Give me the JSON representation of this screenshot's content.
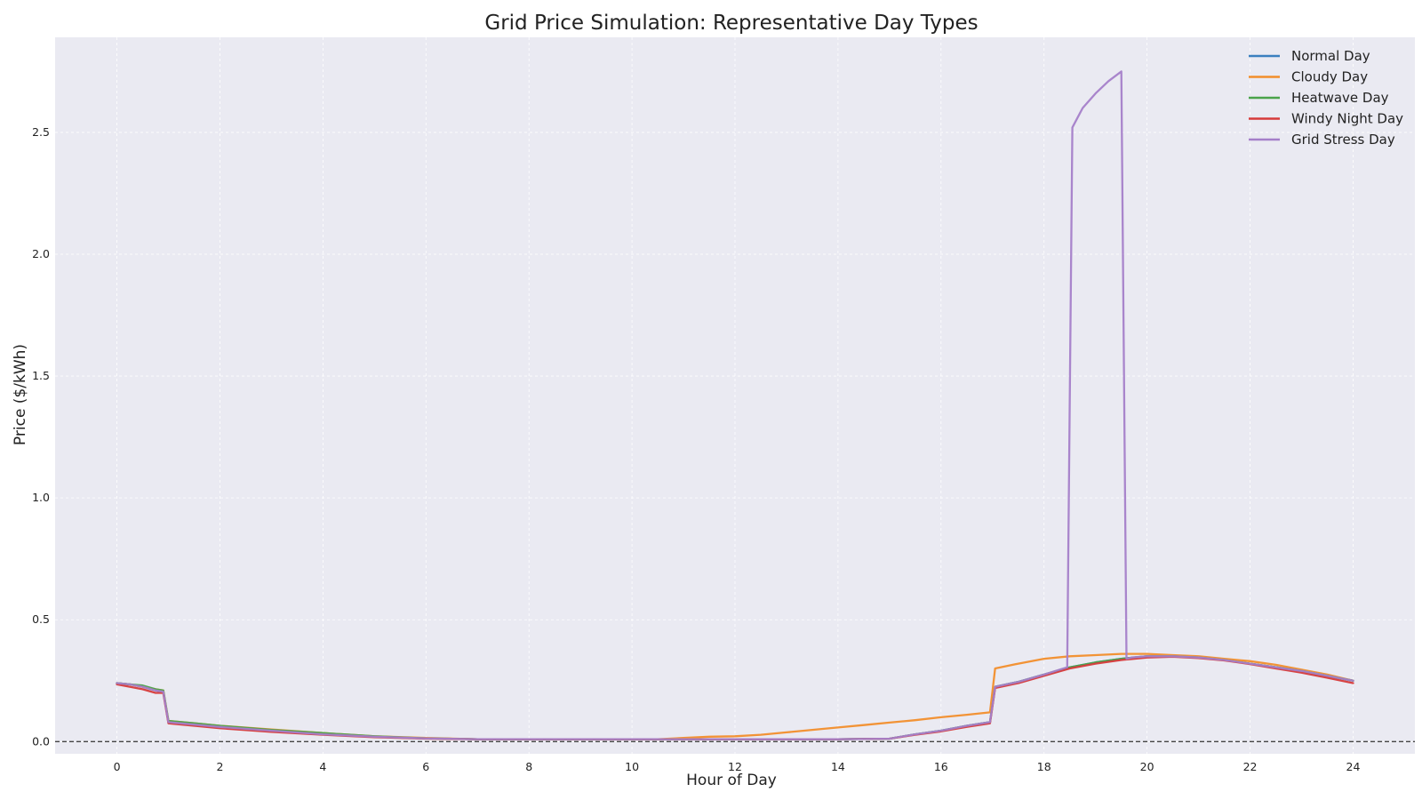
{
  "chart_data": {
    "type": "line",
    "title": "Grid Price Simulation: Representative Day Types",
    "xlabel": "Hour of Day",
    "ylabel": "Price ($/kWh)",
    "xlim": [
      -1.2,
      25.2
    ],
    "ylim": [
      -0.05,
      2.89
    ],
    "xticks": [
      0,
      2,
      4,
      6,
      8,
      10,
      12,
      14,
      16,
      18,
      20,
      22,
      24
    ],
    "yticks": [
      0.0,
      0.5,
      1.0,
      1.5,
      2.0,
      2.5
    ],
    "xtick_labels": [
      "0",
      "2",
      "4",
      "6",
      "8",
      "10",
      "12",
      "14",
      "16",
      "18",
      "20",
      "22",
      "24"
    ],
    "ytick_labels": [
      "0.0",
      "0.5",
      "1.0",
      "1.5",
      "2.0",
      "2.5"
    ],
    "grid": true,
    "reference_line": {
      "y": 0.0,
      "style": "dashed"
    },
    "legend_position": "top-right",
    "background": "#eaeaf2",
    "series": [
      {
        "name": "Normal Day",
        "color": "#3a7fbf",
        "x": [
          0,
          0.25,
          0.5,
          0.75,
          0.9,
          1.0,
          1.5,
          2,
          3,
          4,
          5,
          6,
          7,
          8,
          9,
          10,
          11,
          12,
          13,
          14,
          15,
          15.5,
          16,
          16.5,
          16.95,
          17.05,
          17.5,
          18,
          18.5,
          19,
          19.5,
          20,
          20.5,
          21,
          21.5,
          22,
          22.5,
          23,
          23.5,
          24
        ],
        "y": [
          0.24,
          0.235,
          0.225,
          0.21,
          0.205,
          0.08,
          0.07,
          0.06,
          0.045,
          0.03,
          0.02,
          0.013,
          0.01,
          0.01,
          0.01,
          0.01,
          0.01,
          0.01,
          0.01,
          0.01,
          0.012,
          0.03,
          0.045,
          0.065,
          0.08,
          0.225,
          0.245,
          0.275,
          0.305,
          0.325,
          0.34,
          0.35,
          0.35,
          0.345,
          0.335,
          0.32,
          0.305,
          0.29,
          0.27,
          0.25
        ]
      },
      {
        "name": "Cloudy Day",
        "color": "#f28e2b",
        "x": [
          0,
          0.25,
          0.5,
          0.75,
          0.9,
          1.0,
          1.5,
          2,
          3,
          4,
          5,
          6,
          7,
          8,
          9,
          10,
          10.5,
          11,
          11.5,
          12,
          12.5,
          13,
          13.5,
          14,
          14.5,
          15,
          15.5,
          16,
          16.5,
          16.95,
          17.05,
          17.5,
          18,
          18.5,
          19,
          19.5,
          20,
          20.5,
          21,
          21.5,
          22,
          22.5,
          23,
          23.5,
          24
        ],
        "y": [
          0.24,
          0.235,
          0.225,
          0.215,
          0.21,
          0.085,
          0.075,
          0.065,
          0.05,
          0.035,
          0.022,
          0.015,
          0.01,
          0.01,
          0.01,
          0.01,
          0.01,
          0.015,
          0.02,
          0.022,
          0.028,
          0.038,
          0.048,
          0.058,
          0.068,
          0.078,
          0.088,
          0.1,
          0.11,
          0.12,
          0.3,
          0.32,
          0.34,
          0.35,
          0.355,
          0.36,
          0.36,
          0.355,
          0.35,
          0.34,
          0.33,
          0.315,
          0.295,
          0.275,
          0.25
        ]
      },
      {
        "name": "Heatwave Day",
        "color": "#4aa34a",
        "x": [
          0,
          0.25,
          0.5,
          0.75,
          0.9,
          1.0,
          1.5,
          2,
          3,
          4,
          5,
          6,
          7,
          8,
          9,
          10,
          11,
          12,
          13,
          14,
          15,
          15.5,
          16,
          16.5,
          16.95,
          17.05,
          17.5,
          18,
          18.5,
          19,
          19.5,
          20,
          20.5,
          21,
          21.5,
          22,
          22.5,
          23,
          23.5,
          24
        ],
        "y": [
          0.24,
          0.235,
          0.23,
          0.215,
          0.21,
          0.085,
          0.075,
          0.065,
          0.048,
          0.035,
          0.022,
          0.013,
          0.01,
          0.01,
          0.01,
          0.01,
          0.01,
          0.01,
          0.01,
          0.01,
          0.012,
          0.03,
          0.045,
          0.065,
          0.08,
          0.225,
          0.245,
          0.275,
          0.305,
          0.325,
          0.34,
          0.35,
          0.35,
          0.345,
          0.335,
          0.32,
          0.305,
          0.29,
          0.27,
          0.25
        ]
      },
      {
        "name": "Windy Night Day",
        "color": "#d63a3a",
        "x": [
          0,
          0.25,
          0.5,
          0.75,
          0.9,
          1.0,
          1.5,
          2,
          3,
          4,
          5,
          6,
          7,
          8,
          9,
          10,
          11,
          12,
          13,
          14,
          15,
          15.5,
          16,
          16.5,
          16.95,
          17.05,
          17.5,
          18,
          18.5,
          19,
          19.5,
          20,
          20.5,
          21,
          21.5,
          22,
          22.5,
          23,
          23.5,
          24
        ],
        "y": [
          0.235,
          0.225,
          0.215,
          0.2,
          0.2,
          0.075,
          0.065,
          0.055,
          0.04,
          0.028,
          0.018,
          0.012,
          0.01,
          0.01,
          0.01,
          0.01,
          0.01,
          0.01,
          0.01,
          0.01,
          0.012,
          0.028,
          0.042,
          0.06,
          0.075,
          0.22,
          0.24,
          0.27,
          0.3,
          0.32,
          0.335,
          0.345,
          0.348,
          0.343,
          0.333,
          0.318,
          0.3,
          0.283,
          0.262,
          0.24
        ]
      },
      {
        "name": "Grid Stress Day",
        "color": "#a57fc9",
        "x": [
          0,
          0.25,
          0.5,
          0.75,
          0.9,
          1.0,
          1.5,
          2,
          3,
          4,
          5,
          6,
          7,
          8,
          9,
          10,
          11,
          12,
          13,
          14,
          15,
          15.5,
          16,
          16.5,
          16.95,
          17.05,
          17.5,
          18,
          18.45,
          18.55,
          18.75,
          19,
          19.25,
          19.5,
          19.6,
          19.7,
          20,
          20.5,
          21,
          21.5,
          22,
          22.5,
          23,
          23.5,
          24
        ],
        "y": [
          0.24,
          0.235,
          0.225,
          0.21,
          0.205,
          0.08,
          0.07,
          0.06,
          0.045,
          0.03,
          0.02,
          0.013,
          0.01,
          0.01,
          0.01,
          0.01,
          0.01,
          0.01,
          0.01,
          0.01,
          0.012,
          0.03,
          0.045,
          0.065,
          0.08,
          0.225,
          0.245,
          0.275,
          0.305,
          2.52,
          2.6,
          2.66,
          2.71,
          2.75,
          0.34,
          0.345,
          0.35,
          0.35,
          0.345,
          0.335,
          0.32,
          0.305,
          0.29,
          0.27,
          0.25
        ]
      }
    ]
  }
}
